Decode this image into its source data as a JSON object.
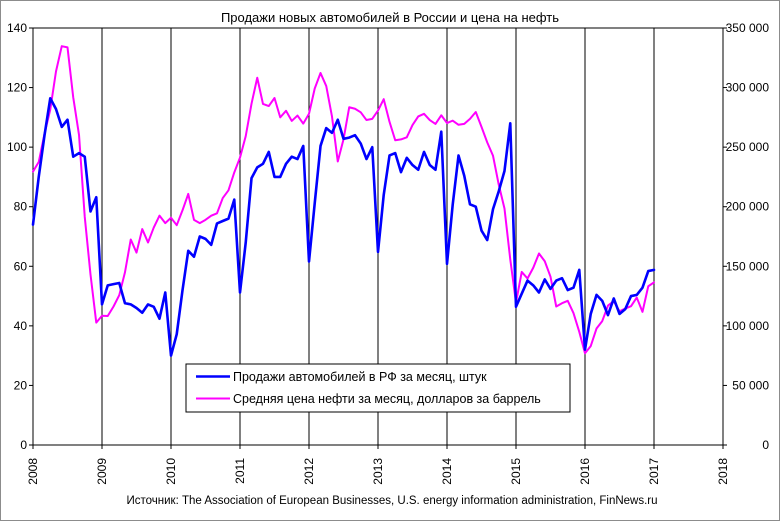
{
  "chart_data": {
    "type": "line",
    "title": "Продажи  новых  автомобилей  в России и цена на нефть",
    "source": "Источник: The Association of European Businesses, U.S. energy information administration, FinNews.ru",
    "x_ticks": [
      "2008",
      "2009",
      "2010",
      "2011",
      "2012",
      "2013",
      "2014",
      "2015",
      "2016",
      "2017",
      "2018"
    ],
    "xlim": [
      2008,
      2018
    ],
    "y_left_ticks": [
      "0",
      "20",
      "40",
      "60",
      "80",
      "100",
      "120",
      "140"
    ],
    "y_left_lim": [
      0,
      140
    ],
    "y_right_ticks": [
      "0",
      "50 000",
      "100 000",
      "150 000",
      "200 000",
      "250 000",
      "300 000",
      "350 000"
    ],
    "y_right_lim": [
      0,
      350000
    ],
    "grid": "vertical",
    "legend_position": "lower-center",
    "series": [
      {
        "name": "Продажи  автомобилей в РФ за месяц, штук",
        "axis": "right",
        "color": "#0000ff",
        "x": [
          2008.0,
          2008.083,
          2008.167,
          2008.25,
          2008.333,
          2008.417,
          2008.5,
          2008.583,
          2008.667,
          2008.75,
          2008.833,
          2008.917,
          2009.0,
          2009.083,
          2009.167,
          2009.25,
          2009.333,
          2009.417,
          2009.5,
          2009.583,
          2009.667,
          2009.75,
          2009.833,
          2009.917,
          2010.0,
          2010.083,
          2010.167,
          2010.25,
          2010.333,
          2010.417,
          2010.5,
          2010.583,
          2010.667,
          2010.75,
          2010.833,
          2010.917,
          2011.0,
          2011.083,
          2011.167,
          2011.25,
          2011.333,
          2011.417,
          2011.5,
          2011.583,
          2011.667,
          2011.75,
          2011.833,
          2011.917,
          2012.0,
          2012.083,
          2012.167,
          2012.25,
          2012.333,
          2012.417,
          2012.5,
          2012.583,
          2012.667,
          2012.75,
          2012.833,
          2012.917,
          2013.0,
          2013.083,
          2013.167,
          2013.25,
          2013.333,
          2013.417,
          2013.5,
          2013.583,
          2013.667,
          2013.75,
          2013.833,
          2013.917,
          2014.0,
          2014.083,
          2014.167,
          2014.25,
          2014.333,
          2014.417,
          2014.5,
          2014.583,
          2014.667,
          2014.75,
          2014.833,
          2014.917,
          2015.0,
          2015.083,
          2015.167,
          2015.25,
          2015.333,
          2015.417,
          2015.5,
          2015.583,
          2015.667,
          2015.75,
          2015.833,
          2015.917,
          2016.0,
          2016.083,
          2016.167,
          2016.25,
          2016.333,
          2016.417,
          2016.5,
          2016.583,
          2016.667,
          2016.75,
          2016.833,
          2016.917,
          2017.0
        ],
        "values": [
          185000,
          225000,
          260000,
          291000,
          282000,
          267000,
          273000,
          242000,
          245000,
          242000,
          196000,
          208000,
          118000,
          134000,
          135000,
          136000,
          119000,
          118000,
          115000,
          111000,
          118000,
          116000,
          106000,
          128000,
          75000,
          93000,
          130000,
          163000,
          158000,
          175000,
          173000,
          168000,
          186000,
          188000,
          190000,
          206000,
          128000,
          170000,
          224000,
          233000,
          236000,
          246000,
          225000,
          225000,
          236000,
          242000,
          240000,
          251000,
          154000,
          203000,
          251000,
          266000,
          262000,
          273000,
          257000,
          258000,
          260000,
          253000,
          240000,
          250000,
          162000,
          210000,
          243000,
          245000,
          229000,
          241000,
          235000,
          231000,
          246000,
          235000,
          231000,
          263000,
          152000,
          202000,
          243000,
          226000,
          202000,
          200000,
          180000,
          172000,
          198000,
          213000,
          230000,
          270000,
          116000,
          127000,
          138000,
          134000,
          128000,
          139000,
          131000,
          138000,
          140000,
          130000,
          132000,
          147000,
          80000,
          110000,
          126000,
          121000,
          109000,
          123000,
          110000,
          114000,
          125000,
          126000,
          132000,
          146000,
          147000
        ]
      },
      {
        "name": "Средняя цена нефти  за месяц, долларов за баррель",
        "axis": "left",
        "color": "#ff00ff",
        "x": [
          2008.0,
          2008.083,
          2008.167,
          2008.25,
          2008.333,
          2008.417,
          2008.5,
          2008.583,
          2008.667,
          2008.75,
          2008.833,
          2008.917,
          2009.0,
          2009.083,
          2009.167,
          2009.25,
          2009.333,
          2009.417,
          2009.5,
          2009.583,
          2009.667,
          2009.75,
          2009.833,
          2009.917,
          2010.0,
          2010.083,
          2010.167,
          2010.25,
          2010.333,
          2010.417,
          2010.5,
          2010.583,
          2010.667,
          2010.75,
          2010.833,
          2010.917,
          2011.0,
          2011.083,
          2011.167,
          2011.25,
          2011.333,
          2011.417,
          2011.5,
          2011.583,
          2011.667,
          2011.75,
          2011.833,
          2011.917,
          2012.0,
          2012.083,
          2012.167,
          2012.25,
          2012.333,
          2012.417,
          2012.5,
          2012.583,
          2012.667,
          2012.75,
          2012.833,
          2012.917,
          2013.0,
          2013.083,
          2013.167,
          2013.25,
          2013.333,
          2013.417,
          2013.5,
          2013.583,
          2013.667,
          2013.75,
          2013.833,
          2013.917,
          2014.0,
          2014.083,
          2014.167,
          2014.25,
          2014.333,
          2014.417,
          2014.5,
          2014.583,
          2014.667,
          2014.75,
          2014.833,
          2014.917,
          2015.0,
          2015.083,
          2015.167,
          2015.25,
          2015.333,
          2015.417,
          2015.5,
          2015.583,
          2015.667,
          2015.75,
          2015.833,
          2015.917,
          2016.0,
          2016.083,
          2016.167,
          2016.25,
          2016.333,
          2016.417,
          2016.5,
          2016.583,
          2016.667,
          2016.75,
          2016.833,
          2016.917,
          2017.0
        ],
        "values": [
          91.8,
          95.0,
          104.5,
          112.6,
          125.4,
          133.9,
          133.5,
          116.7,
          104.1,
          76.6,
          57.3,
          41.1,
          43.4,
          43.3,
          46.5,
          50.3,
          58.0,
          69.0,
          64.6,
          72.5,
          68.0,
          73.0,
          77.0,
          74.5,
          76.3,
          73.8,
          78.8,
          84.3,
          75.6,
          74.5,
          75.6,
          77.0,
          77.8,
          82.9,
          85.5,
          91.5,
          96.5,
          103.7,
          114.6,
          123.3,
          114.5,
          113.8,
          116.5,
          110.0,
          112.2,
          108.8,
          110.6,
          107.9,
          111.2,
          119.7,
          124.9,
          120.5,
          110.3,
          95.2,
          102.6,
          113.4,
          112.9,
          111.7,
          109.1,
          109.5,
          112.3,
          116.1,
          108.5,
          102.3,
          102.6,
          103.3,
          107.4,
          110.3,
          111.2,
          109.1,
          107.8,
          110.7,
          108.1,
          108.9,
          107.5,
          107.8,
          109.5,
          111.8,
          106.8,
          101.6,
          97.1,
          87.4,
          79.4,
          62.3,
          47.8,
          58.1,
          55.9,
          59.5,
          64.3,
          61.7,
          56.5,
          46.5,
          47.6,
          48.4,
          44.3,
          38.0,
          30.8,
          33.2,
          39.1,
          41.6,
          46.8,
          48.3,
          44.9,
          45.8,
          46.6,
          49.5,
          44.7,
          53.3,
          54.6
        ]
      }
    ]
  }
}
